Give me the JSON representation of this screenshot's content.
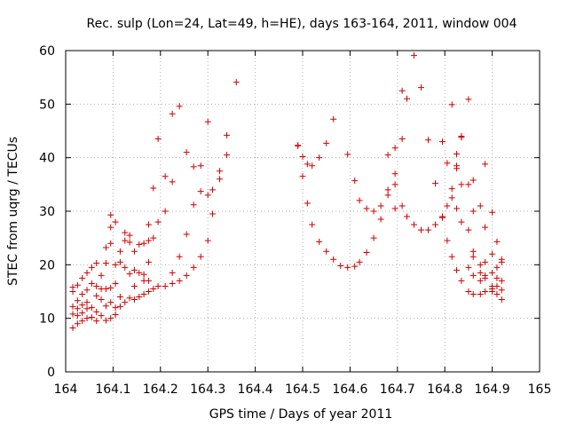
{
  "chart_data": {
    "type": "scatter",
    "title": "Rec. sulp (Lon=24, Lat=49, h=HE), days 163-164, 2011, window 004",
    "xlabel": "GPS time / Days of year 2011",
    "ylabel": "STEC from uqrg / TECUs",
    "xlim": [
      164,
      165
    ],
    "ylim": [
      0,
      60
    ],
    "x_ticks": [
      "164",
      "164.1",
      "164.2",
      "164.3",
      "164.4",
      "164.5",
      "164.6",
      "164.7",
      "164.8",
      "164.9",
      "165"
    ],
    "x_tick_values": [
      164,
      164.1,
      164.2,
      164.3,
      164.4,
      164.5,
      164.6,
      164.7,
      164.8,
      164.9,
      165
    ],
    "y_ticks": [
      "0",
      "10",
      "20",
      "30",
      "40",
      "50",
      "60"
    ],
    "y_tick_values": [
      0,
      10,
      20,
      30,
      40,
      50,
      60
    ],
    "marker": "+",
    "grid": true,
    "series": [
      {
        "name": "STEC",
        "color": "#cc0000",
        "points": [
          [
            164.015,
            15.8
          ],
          [
            164.015,
            15.0
          ],
          [
            164.015,
            12.2
          ],
          [
            164.015,
            10.8
          ],
          [
            164.015,
            8.2
          ],
          [
            164.025,
            16.2
          ],
          [
            164.025,
            13.3
          ],
          [
            164.025,
            11.8
          ],
          [
            164.025,
            10.5
          ],
          [
            164.025,
            9.0
          ],
          [
            164.035,
            17.5
          ],
          [
            164.035,
            14.5
          ],
          [
            164.035,
            12.5
          ],
          [
            164.035,
            11.0
          ],
          [
            164.035,
            9.5
          ],
          [
            164.045,
            18.5
          ],
          [
            164.045,
            15.3
          ],
          [
            164.045,
            13.0
          ],
          [
            164.045,
            11.8
          ],
          [
            164.045,
            10.0
          ],
          [
            164.055,
            19.5
          ],
          [
            164.055,
            16.5
          ],
          [
            164.055,
            12.0
          ],
          [
            164.055,
            10.2
          ],
          [
            164.065,
            20.3
          ],
          [
            164.065,
            16.0
          ],
          [
            164.065,
            14.2
          ],
          [
            164.065,
            11.2
          ],
          [
            164.065,
            9.5
          ],
          [
            164.075,
            18.0
          ],
          [
            164.075,
            15.5
          ],
          [
            164.075,
            13.5
          ],
          [
            164.075,
            10.5
          ],
          [
            164.085,
            23.2
          ],
          [
            164.085,
            20.3
          ],
          [
            164.085,
            15.5
          ],
          [
            164.085,
            12.3
          ],
          [
            164.085,
            9.6
          ],
          [
            164.095,
            29.3
          ],
          [
            164.095,
            27.0
          ],
          [
            164.095,
            24.0
          ],
          [
            164.095,
            15.7
          ],
          [
            164.095,
            13.0
          ],
          [
            164.095,
            10.0
          ],
          [
            164.105,
            28.0
          ],
          [
            164.105,
            20.0
          ],
          [
            164.105,
            16.5
          ],
          [
            164.105,
            12.0
          ],
          [
            164.105,
            10.7
          ],
          [
            164.115,
            22.5
          ],
          [
            164.115,
            20.5
          ],
          [
            164.115,
            14.0
          ],
          [
            164.115,
            12.2
          ],
          [
            164.125,
            26.0
          ],
          [
            164.125,
            24.5
          ],
          [
            164.125,
            19.5
          ],
          [
            164.125,
            13.0
          ],
          [
            164.135,
            25.5
          ],
          [
            164.135,
            24.2
          ],
          [
            164.135,
            18.3
          ],
          [
            164.135,
            13.8
          ],
          [
            164.145,
            22.5
          ],
          [
            164.145,
            19.0
          ],
          [
            164.145,
            16.0
          ],
          [
            164.145,
            13.5
          ],
          [
            164.155,
            23.8
          ],
          [
            164.155,
            18.5
          ],
          [
            164.155,
            14.0
          ],
          [
            164.165,
            24.0
          ],
          [
            164.165,
            18.2
          ],
          [
            164.165,
            17.0
          ],
          [
            164.165,
            14.5
          ],
          [
            164.175,
            27.5
          ],
          [
            164.175,
            24.5
          ],
          [
            164.175,
            20.5
          ],
          [
            164.175,
            17.0
          ],
          [
            164.175,
            15.0
          ],
          [
            164.185,
            34.3
          ],
          [
            164.185,
            25.0
          ],
          [
            164.185,
            15.5
          ],
          [
            164.195,
            43.5
          ],
          [
            164.195,
            28.0
          ],
          [
            164.195,
            16.0
          ],
          [
            164.21,
            36.5
          ],
          [
            164.21,
            30.0
          ],
          [
            164.21,
            16.0
          ],
          [
            164.225,
            48.2
          ],
          [
            164.225,
            35.5
          ],
          [
            164.225,
            18.5
          ],
          [
            164.225,
            16.5
          ],
          [
            164.24,
            49.6
          ],
          [
            164.24,
            21.5
          ],
          [
            164.24,
            17.0
          ],
          [
            164.255,
            41.0
          ],
          [
            164.255,
            25.7
          ],
          [
            164.255,
            18.0
          ],
          [
            164.27,
            38.3
          ],
          [
            164.27,
            31.2
          ],
          [
            164.27,
            19.5
          ],
          [
            164.285,
            38.5
          ],
          [
            164.285,
            33.7
          ],
          [
            164.285,
            21.5
          ],
          [
            164.3,
            46.7
          ],
          [
            164.3,
            33.0
          ],
          [
            164.3,
            24.5
          ],
          [
            164.31,
            34.0
          ],
          [
            164.31,
            29.5
          ],
          [
            164.325,
            37.5
          ],
          [
            164.325,
            36.0
          ],
          [
            164.34,
            44.2
          ],
          [
            164.34,
            40.5
          ],
          [
            164.36,
            54.1
          ],
          [
            164.49,
            42.3
          ],
          [
            164.49,
            42.2
          ],
          [
            164.5,
            40.2
          ],
          [
            164.5,
            36.5
          ],
          [
            164.51,
            38.8
          ],
          [
            164.51,
            31.5
          ],
          [
            164.52,
            38.5
          ],
          [
            164.52,
            27.5
          ],
          [
            164.535,
            40.0
          ],
          [
            164.535,
            24.3
          ],
          [
            164.55,
            42.7
          ],
          [
            164.55,
            22.5
          ],
          [
            164.565,
            47.2
          ],
          [
            164.565,
            21.0
          ],
          [
            164.58,
            19.8
          ],
          [
            164.595,
            40.6
          ],
          [
            164.595,
            19.5
          ],
          [
            164.61,
            35.7
          ],
          [
            164.61,
            19.7
          ],
          [
            164.62,
            32.0
          ],
          [
            164.62,
            20.5
          ],
          [
            164.635,
            30.5
          ],
          [
            164.635,
            22.3
          ],
          [
            164.65,
            30.0
          ],
          [
            164.65,
            25.0
          ],
          [
            164.665,
            31.0
          ],
          [
            164.665,
            28.5
          ],
          [
            164.68,
            40.5
          ],
          [
            164.68,
            34.0
          ],
          [
            164.68,
            33.0
          ],
          [
            164.695,
            41.8
          ],
          [
            164.695,
            37.0
          ],
          [
            164.695,
            35.0
          ],
          [
            164.695,
            30.5
          ],
          [
            164.71,
            52.5
          ],
          [
            164.71,
            43.5
          ],
          [
            164.71,
            31.0
          ],
          [
            164.72,
            51.0
          ],
          [
            164.72,
            29.0
          ],
          [
            164.735,
            59.1
          ],
          [
            164.735,
            27.5
          ],
          [
            164.75,
            53.1
          ],
          [
            164.75,
            26.5
          ],
          [
            164.765,
            43.3
          ],
          [
            164.765,
            26.5
          ],
          [
            164.78,
            35.2
          ],
          [
            164.78,
            27.5
          ],
          [
            164.795,
            43.0
          ],
          [
            164.795,
            29.0
          ],
          [
            164.795,
            28.8
          ],
          [
            164.805,
            39.0
          ],
          [
            164.805,
            31.0
          ],
          [
            164.805,
            24.5
          ],
          [
            164.815,
            49.9
          ],
          [
            164.815,
            34.2
          ],
          [
            164.815,
            32.5
          ],
          [
            164.815,
            21.5
          ],
          [
            164.825,
            40.7
          ],
          [
            164.825,
            38.5
          ],
          [
            164.825,
            38.0
          ],
          [
            164.825,
            30.5
          ],
          [
            164.825,
            19.0
          ],
          [
            164.835,
            44.0
          ],
          [
            164.835,
            43.8
          ],
          [
            164.835,
            35.0
          ],
          [
            164.835,
            28.0
          ],
          [
            164.835,
            17.0
          ],
          [
            164.85,
            50.9
          ],
          [
            164.85,
            35.0
          ],
          [
            164.85,
            26.5
          ],
          [
            164.85,
            19.5
          ],
          [
            164.85,
            15.0
          ],
          [
            164.86,
            35.8
          ],
          [
            164.86,
            30.0
          ],
          [
            164.86,
            22.5
          ],
          [
            164.86,
            21.5
          ],
          [
            164.86,
            18.0
          ],
          [
            164.86,
            14.5
          ],
          [
            164.875,
            31.0
          ],
          [
            164.875,
            20.0
          ],
          [
            164.875,
            18.5
          ],
          [
            164.875,
            17.0
          ],
          [
            164.875,
            14.5
          ],
          [
            164.885,
            38.8
          ],
          [
            164.885,
            27.0
          ],
          [
            164.885,
            20.5
          ],
          [
            164.885,
            18.0
          ],
          [
            164.885,
            17.5
          ],
          [
            164.885,
            15.0
          ],
          [
            164.9,
            29.8
          ],
          [
            164.9,
            22.0
          ],
          [
            164.9,
            18.5
          ],
          [
            164.9,
            16.0
          ],
          [
            164.9,
            15.5
          ],
          [
            164.9,
            15.0
          ],
          [
            164.91,
            24.3
          ],
          [
            164.91,
            19.5
          ],
          [
            164.91,
            17.5
          ],
          [
            164.91,
            16.0
          ],
          [
            164.91,
            14.5
          ],
          [
            164.92,
            21.0
          ],
          [
            164.92,
            20.5
          ],
          [
            164.92,
            17.0
          ],
          [
            164.92,
            15.3
          ],
          [
            164.92,
            13.5
          ]
        ]
      }
    ]
  }
}
